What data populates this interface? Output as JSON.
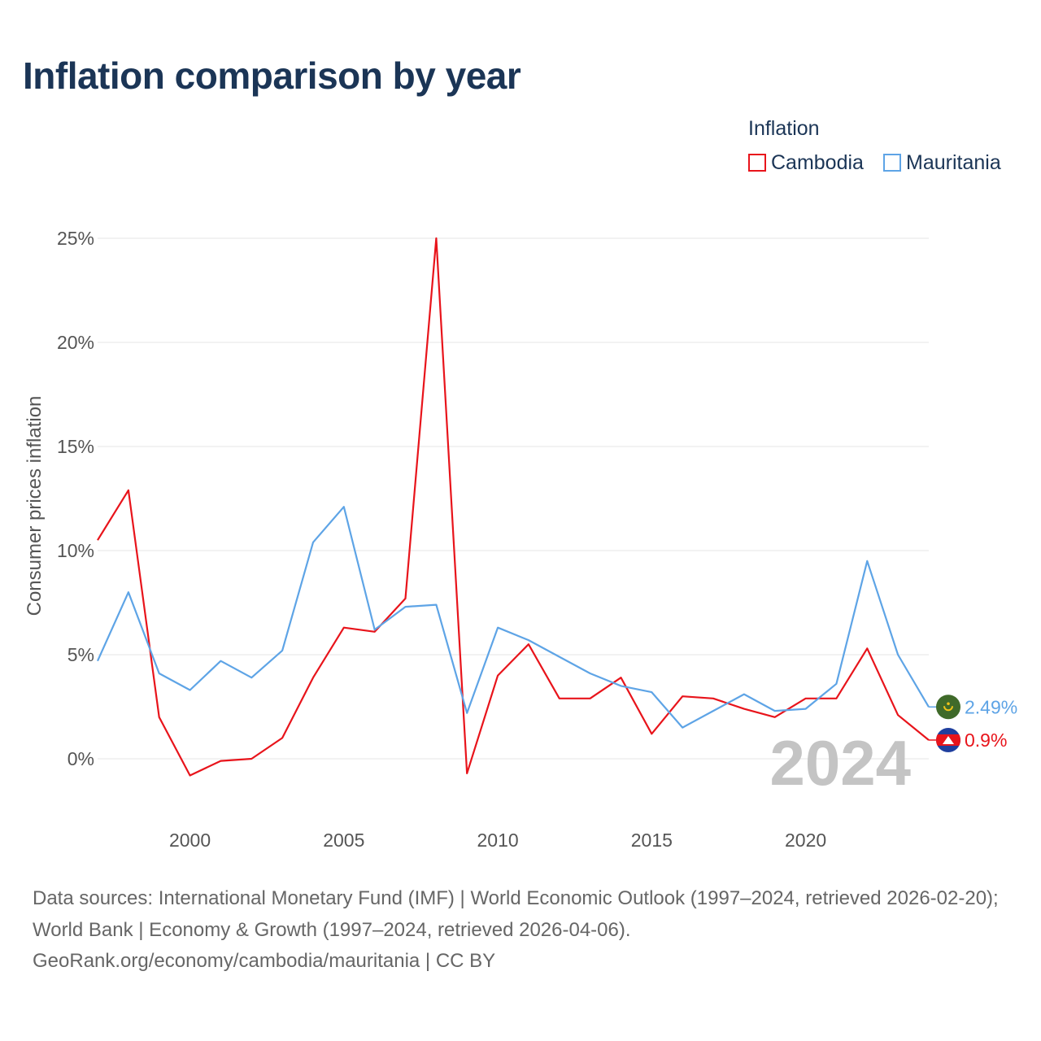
{
  "title": "Inflation comparison by year",
  "legend": {
    "title": "Inflation",
    "items": [
      {
        "label": "Cambodia",
        "color": "#e8141b"
      },
      {
        "label": "Mauritania",
        "color": "#5ea4e6"
      }
    ]
  },
  "source": {
    "line1": "Data sources: International Monetary Fund (IMF) | World Economic Outlook (1997–2024, retrieved 2026-02-20); World Bank | Economy & Growth (1997–2024, retrieved 2026-04-06).",
    "line2": "GeoRank.org/economy/cambodia/mauritania | CC BY"
  },
  "watermark_year": "2024",
  "chart_data": {
    "type": "line",
    "title": "Inflation comparison by year",
    "xlabel": "",
    "ylabel": "Consumer prices inflation",
    "xlim": [
      1997,
      2024
    ],
    "ylim": [
      -2.5,
      25
    ],
    "grid": true,
    "x_ticks": [
      2000,
      2005,
      2010,
      2015,
      2020
    ],
    "y_ticks": [
      0,
      5,
      10,
      15,
      20,
      25
    ],
    "y_tick_labels": [
      "0%",
      "5%",
      "10%",
      "15%",
      "20%",
      "25%"
    ],
    "x": [
      1997,
      1998,
      1999,
      2000,
      2001,
      2002,
      2003,
      2004,
      2005,
      2006,
      2007,
      2008,
      2009,
      2010,
      2011,
      2012,
      2013,
      2014,
      2015,
      2016,
      2017,
      2018,
      2019,
      2020,
      2021,
      2022,
      2023,
      2024
    ],
    "series": [
      {
        "name": "Cambodia",
        "color": "#e8141b",
        "end_label": "0.9%",
        "flag": "cambodia-flag-icon",
        "values": [
          10.5,
          12.9,
          2.0,
          -0.8,
          -0.1,
          0.0,
          1.0,
          3.9,
          6.3,
          6.1,
          7.7,
          25.0,
          -0.7,
          4.0,
          5.5,
          2.9,
          2.9,
          3.9,
          1.2,
          3.0,
          2.9,
          2.4,
          2.0,
          2.9,
          2.9,
          5.3,
          2.1,
          0.9
        ]
      },
      {
        "name": "Mauritania",
        "color": "#5ea4e6",
        "end_label": "2.49%",
        "flag": "mauritania-flag-icon",
        "values": [
          4.7,
          8.0,
          4.1,
          3.3,
          4.7,
          3.9,
          5.2,
          10.4,
          12.1,
          6.2,
          7.3,
          7.4,
          2.2,
          6.3,
          5.7,
          4.9,
          4.1,
          3.5,
          3.2,
          1.5,
          2.3,
          3.1,
          2.3,
          2.4,
          3.6,
          9.5,
          5.0,
          2.49
        ]
      }
    ]
  }
}
